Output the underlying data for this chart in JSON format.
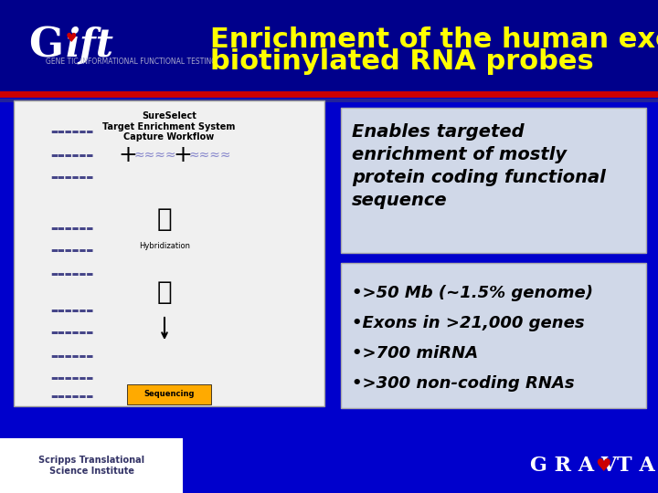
{
  "title_line1": "Enrichment of the human exome using",
  "title_line2": "biotinylated RNA probes",
  "title_color": "#FFFF00",
  "header_bg": "#00008B",
  "body_bg": "#0000CC",
  "red_line_color": "#CC0000",
  "logo_text": "Gift",
  "logo_subtitle": "GENE TIC INFORMATIONAL FUNCTIONAL TESTING",
  "box1_text": "Enables targeted\nenrichment of mostly\nprotein coding functional\nsequence",
  "box2_lines": [
    "•>50 Mb (~1.5% genome)",
    "•Exons in >21,000 genes",
    "•>700 miRNA",
    "•>300 non-coding RNAs"
  ],
  "box_bg": "#D0D8E8",
  "box_text_color": "#000000",
  "gravitas_text": "GRAV♥TAS",
  "gravitas_color": "#FFFFFF",
  "footer_logo_text": "Scripps Translational\nScience Institute",
  "workflow_label": "SureSelect\nTarget Enrichment System\nCapture Workflow"
}
